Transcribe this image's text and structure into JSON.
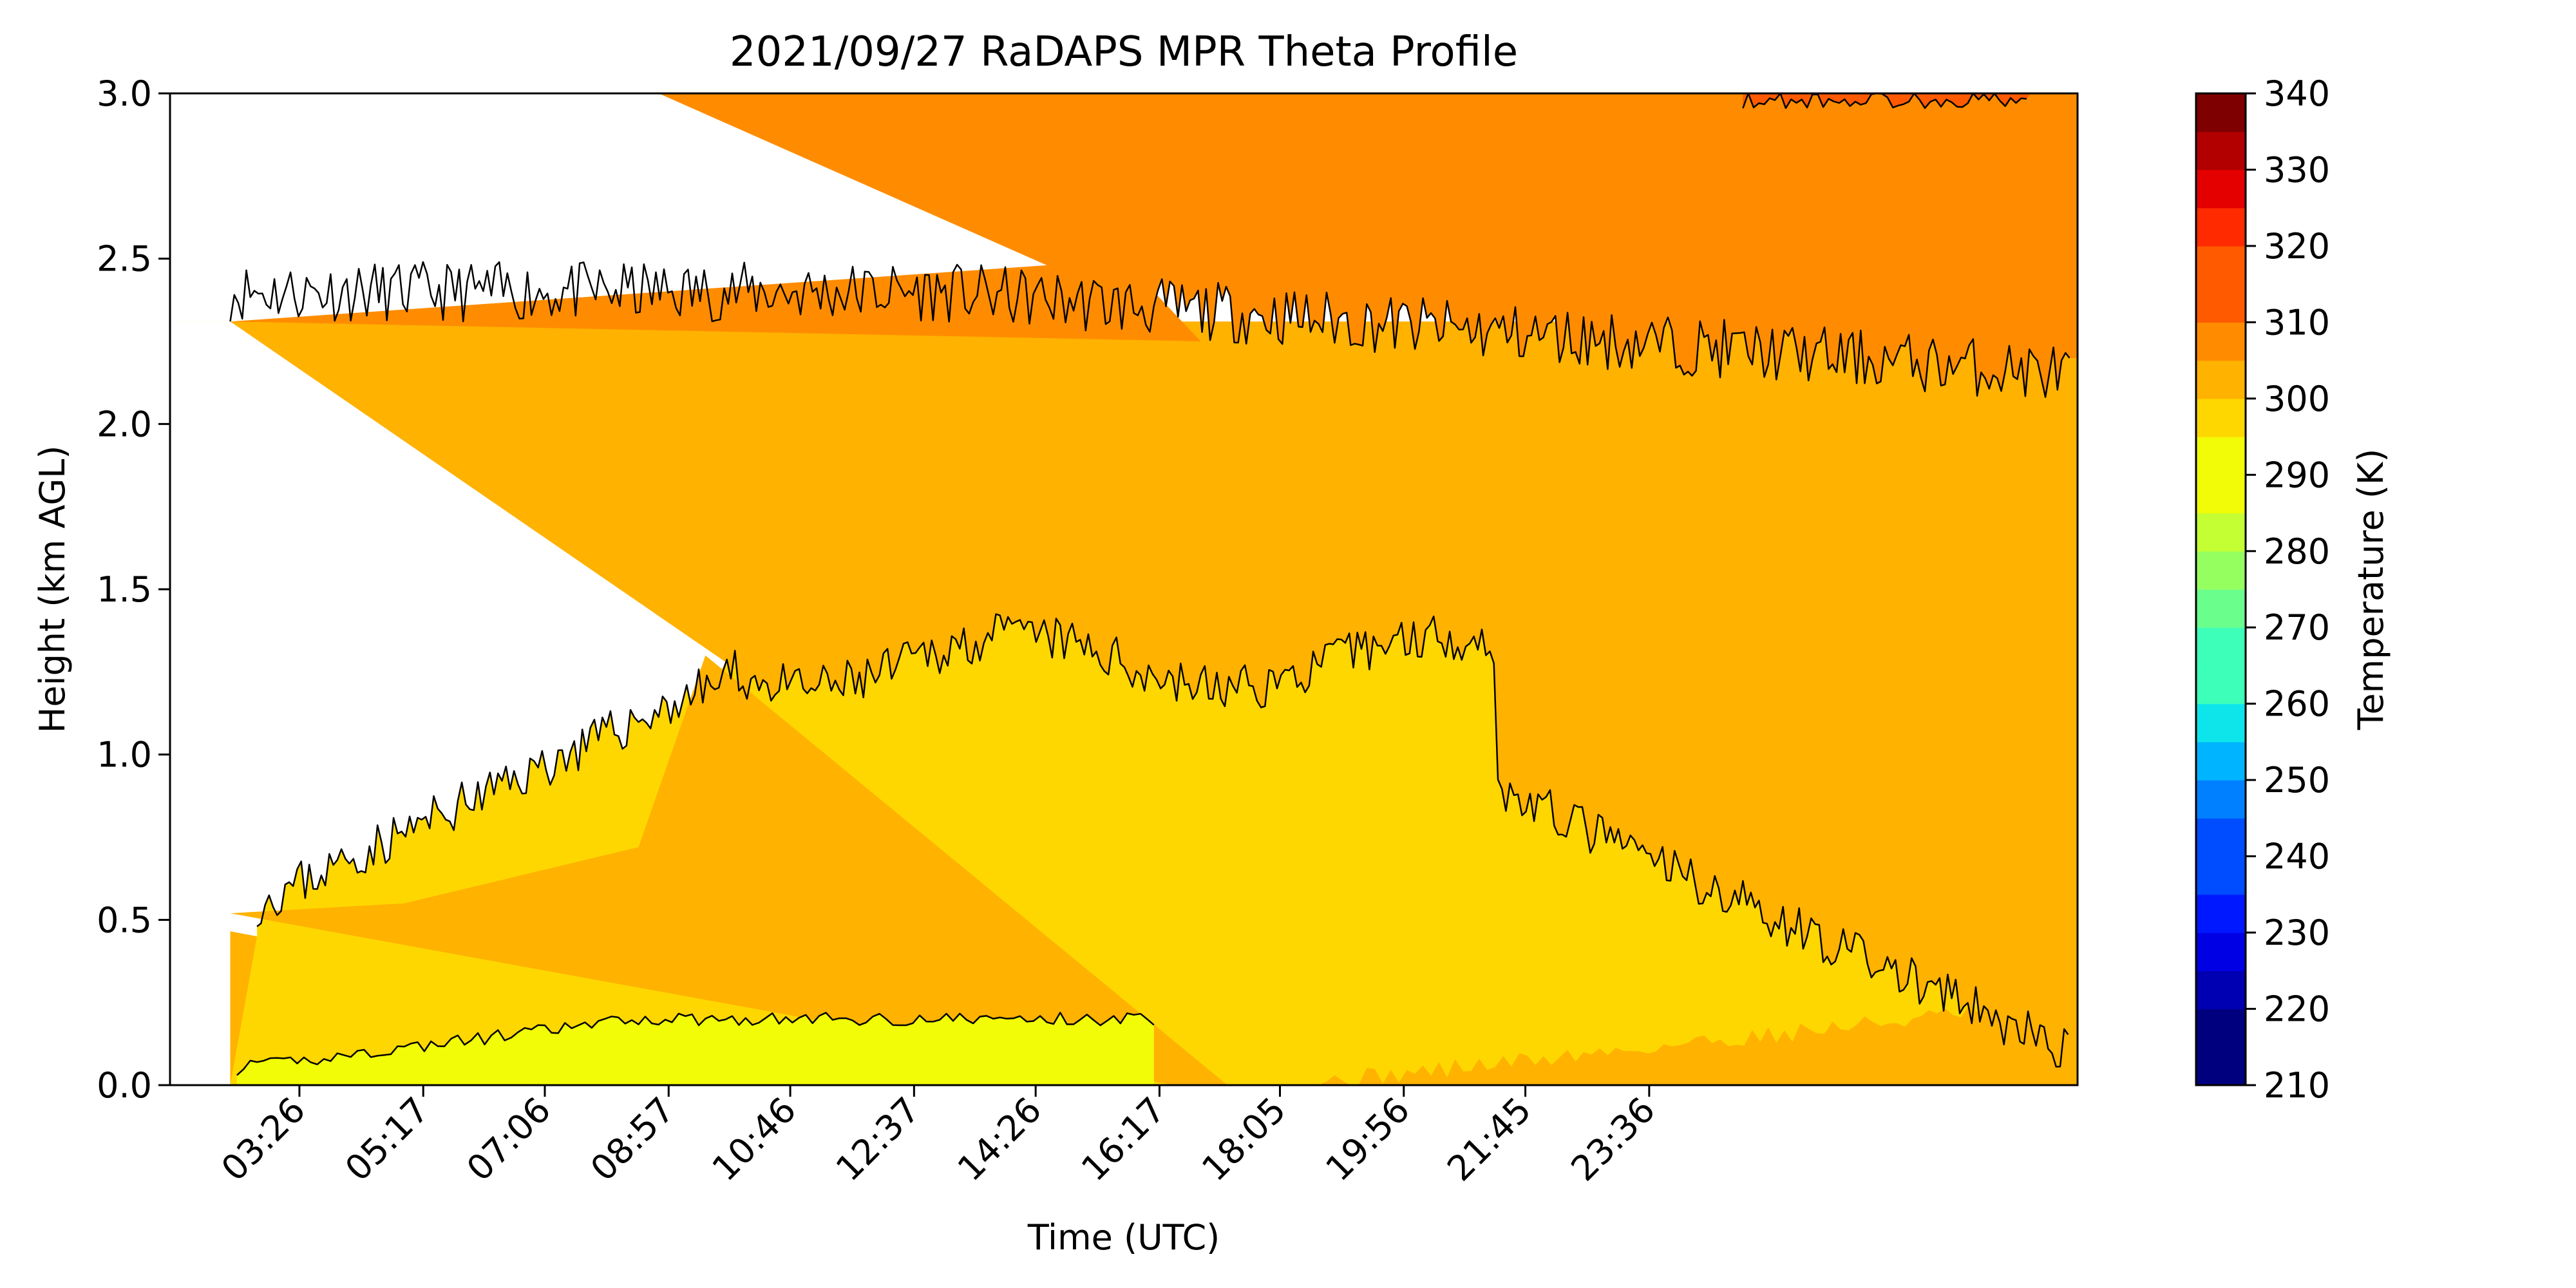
{
  "chart_data": {
    "type": "heatmap",
    "subtype": "filled-contour",
    "title": "2021/09/27 RaDAPS MPR Theta Profile",
    "xlabel": "Time (UTC)",
    "ylabel": "Height (km AGL)",
    "x_ticks": [
      "03:26",
      "05:17",
      "07:06",
      "08:57",
      "10:46",
      "12:37",
      "14:26",
      "16:17",
      "18:05",
      "19:56",
      "21:45",
      "23:36"
    ],
    "ylim": [
      0.0,
      3.0
    ],
    "y_ticks": [
      "0.0",
      "0.5",
      "1.0",
      "1.5",
      "2.0",
      "2.5",
      "3.0"
    ],
    "colorbar": {
      "label": "Temperature (K)",
      "range": [
        210,
        340
      ],
      "tick_labels": [
        "210",
        "220",
        "230",
        "240",
        "250",
        "260",
        "270",
        "280",
        "290",
        "300",
        "310",
        "320",
        "330",
        "340"
      ],
      "level_step": 5,
      "colors": [
        "#00007f",
        "#0000b2",
        "#0000e5",
        "#0018ff",
        "#004cff",
        "#0080ff",
        "#00b4ff",
        "#0de5ea",
        "#3dffba",
        "#6aff8d",
        "#96ff60",
        "#c4ff33",
        "#f1fc06",
        "#ffd700",
        "#ffb200",
        "#ff8c00",
        "#ff5a00",
        "#ff2a00",
        "#e50000",
        "#b20000",
        "#7f0000"
      ]
    },
    "regions": [
      {
        "level": "285-290 K",
        "color": "#f1fc06",
        "extent": "surface to ~0.2 km, ~02:30–16:00 UTC"
      },
      {
        "level": "290-295 K",
        "color": "#ffd700",
        "extent": "near-surface wedge early; ~0.4–1.4 km mixed layer ~10:00–21:00 UTC"
      },
      {
        "level": "295-300 K",
        "color": "#ffb200",
        "extent": "~0.5–2.3 km; dominant mid layer; near surface after ~21:00 UTC"
      },
      {
        "level": "300-305 K",
        "color": "#ff8c00",
        "extent": "~2.3–3.0 km; descends to ~2.1 km by 24:00 UTC"
      },
      {
        "level": "305-310 K",
        "color": "#ff5a00",
        "extent": "small patches near 3.0 km after ~23:00 UTC"
      }
    ]
  }
}
